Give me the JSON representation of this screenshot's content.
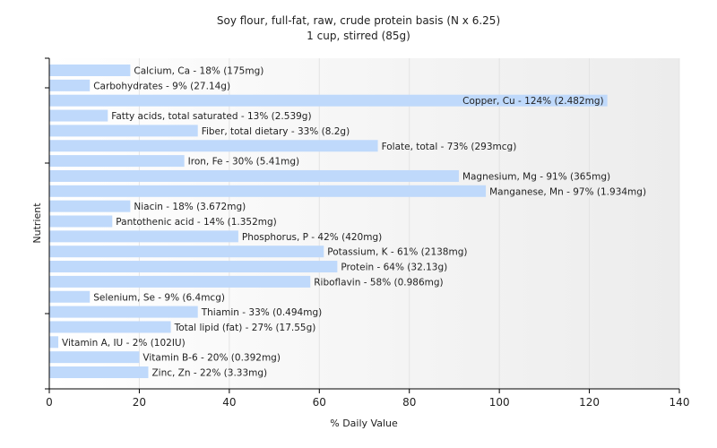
{
  "chart_data": {
    "type": "bar",
    "orientation": "horizontal",
    "title": "Soy flour, full-fat, raw, crude protein basis (N x 6.25)",
    "subtitle": "1 cup, stirred (85g)",
    "xlabel": "% Daily Value",
    "ylabel": "Nutrient",
    "xlim": [
      0,
      140
    ],
    "xticks": [
      0,
      20,
      40,
      60,
      80,
      100,
      120,
      140
    ],
    "grid": true,
    "categories": [
      "Calcium, Ca",
      "Carbohydrates",
      "Copper, Cu",
      "Fatty acids, total saturated",
      "Fiber, total dietary",
      "Folate, total",
      "Iron, Fe",
      "Magnesium, Mg",
      "Manganese, Mn",
      "Niacin",
      "Pantothenic acid",
      "Phosphorus, P",
      "Potassium, K",
      "Protein",
      "Riboflavin",
      "Selenium, Se",
      "Thiamin",
      "Total lipid (fat)",
      "Vitamin A, IU",
      "Vitamin B-6",
      "Zinc, Zn"
    ],
    "values": [
      18,
      9,
      124,
      13,
      33,
      73,
      30,
      91,
      97,
      18,
      14,
      42,
      61,
      64,
      58,
      9,
      33,
      27,
      2,
      20,
      22
    ],
    "labels": [
      "Calcium, Ca - 18% (175mg)",
      "Carbohydrates - 9% (27.14g)",
      "Copper, Cu - 124% (2.482mg)",
      "Fatty acids, total saturated - 13% (2.539g)",
      "Fiber, total dietary - 33% (8.2g)",
      "Folate, total - 73% (293mcg)",
      "Iron, Fe - 30% (5.41mg)",
      "Magnesium, Mg - 91% (365mg)",
      "Manganese, Mn - 97% (1.934mg)",
      "Niacin - 18% (3.672mg)",
      "Pantothenic acid - 14% (1.352mg)",
      "Phosphorus, P - 42% (420mg)",
      "Potassium, K - 61% (2138mg)",
      "Protein - 64% (32.13g)",
      "Riboflavin - 58% (0.986mg)",
      "Selenium, Se - 9% (6.4mcg)",
      "Thiamin - 33% (0.494mg)",
      "Total lipid (fat) - 27% (17.55g)",
      "Vitamin A, IU - 2% (102IU)",
      "Vitamin B-6 - 20% (0.392mg)",
      "Zinc, Zn - 22% (3.33mg)"
    ],
    "bar_color": "#bfd9fb"
  }
}
